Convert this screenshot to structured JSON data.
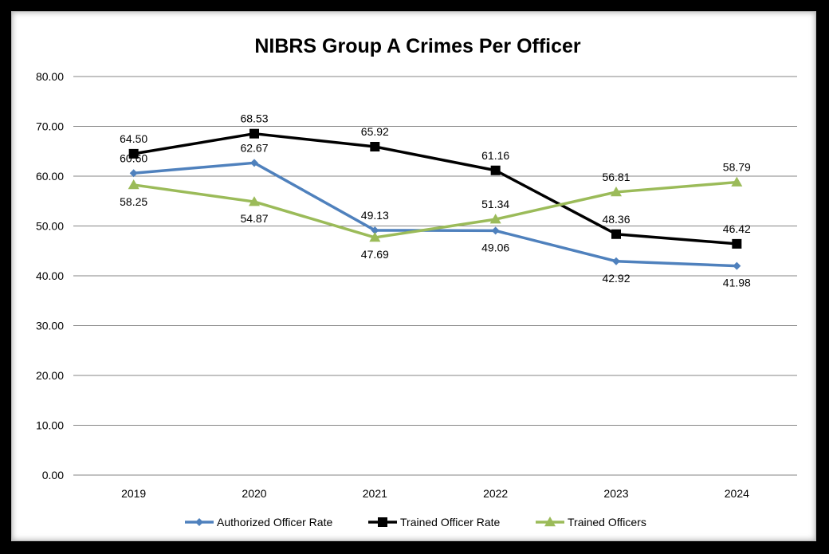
{
  "chart_data": {
    "type": "line",
    "title": "NIBRS Group A Crimes Per Officer",
    "categories": [
      "2019",
      "2020",
      "2021",
      "2022",
      "2023",
      "2024"
    ],
    "ylim": [
      0,
      80
    ],
    "yticks": [
      "0.00",
      "10.00",
      "20.00",
      "30.00",
      "40.00",
      "50.00",
      "60.00",
      "70.00",
      "80.00"
    ],
    "grid": true,
    "legend_position": "bottom",
    "series": [
      {
        "name": "Authorized Officer Rate",
        "color": "#4f81bd",
        "marker": "diamond",
        "values": [
          60.6,
          62.67,
          49.13,
          49.06,
          42.92,
          41.98
        ],
        "labels": [
          "60.60",
          "62.67",
          "49.13",
          "49.06",
          "42.92",
          "41.98"
        ]
      },
      {
        "name": "Trained Officer Rate",
        "color": "#000000",
        "marker": "square",
        "values": [
          64.5,
          68.53,
          65.92,
          61.16,
          48.36,
          46.42
        ],
        "labels": [
          "64.50",
          "68.53",
          "65.92",
          "61.16",
          "48.36",
          "46.42"
        ]
      },
      {
        "name": "Trained Officers",
        "color": "#9bbb59",
        "marker": "triangle",
        "values": [
          58.25,
          54.87,
          47.69,
          51.34,
          56.81,
          58.79
        ],
        "labels": [
          "58.25",
          "54.87",
          "47.69",
          "51.34",
          "56.81",
          "58.79"
        ]
      }
    ]
  }
}
